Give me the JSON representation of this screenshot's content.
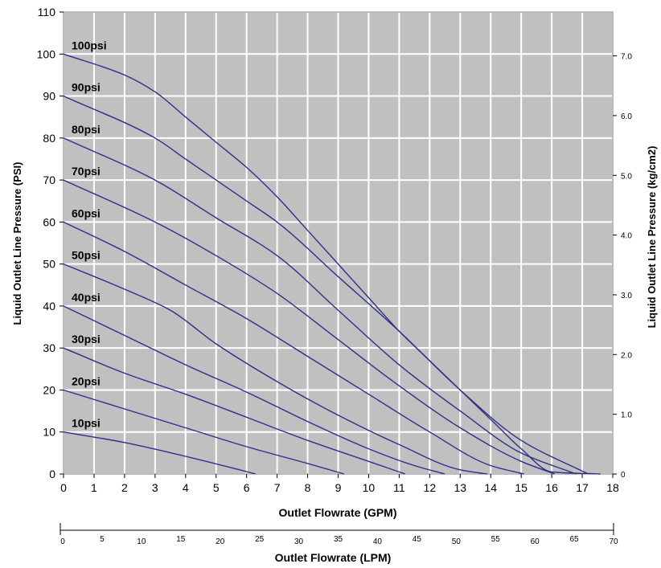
{
  "chart_data": {
    "type": "line",
    "xlabel": "Outlet Flowrate (GPM)",
    "ylabel": "Liquid Outlet Line Pressure (PSI)",
    "ylabel_right": "Liquid Outlet Line Pressure (kg/cm2)",
    "xlabel_secondary": "Outlet Flowrate (LPM)",
    "xlim": [
      0,
      18
    ],
    "ylim": [
      0,
      110
    ],
    "grid": true,
    "background": "#c0c0c0",
    "line_color": "#2e2e8c",
    "x_ticks": [
      "0",
      "1",
      "2",
      "3",
      "4",
      "5",
      "6",
      "7",
      "8",
      "9",
      "10",
      "11",
      "12",
      "13",
      "14",
      "15",
      "16",
      "17",
      "18"
    ],
    "y_ticks": [
      "0",
      "10",
      "20",
      "30",
      "40",
      "50",
      "60",
      "70",
      "80",
      "90",
      "100",
      "110"
    ],
    "right_ticks": [
      {
        "label": "0",
        "value": 0
      },
      {
        "label": "1.0",
        "value": 1.0
      },
      {
        "label": "2.0",
        "value": 2.0
      },
      {
        "label": "3.0",
        "value": 3.0
      },
      {
        "label": "4.0",
        "value": 4.0
      },
      {
        "label": "5.0",
        "value": 5.0
      },
      {
        "label": "6.0",
        "value": 6.0
      },
      {
        "label": "7.0",
        "value": 7.0
      }
    ],
    "lpm_ticks": [
      "0",
      "5",
      "10",
      "15",
      "20",
      "25",
      "30",
      "35",
      "40",
      "45",
      "50",
      "55",
      "60",
      "65",
      "70"
    ],
    "series": [
      {
        "name": "10psi",
        "points": [
          [
            0,
            10
          ],
          [
            2,
            7.5
          ],
          [
            4,
            4.2
          ],
          [
            5.5,
            1.5
          ],
          [
            6.3,
            0
          ]
        ]
      },
      {
        "name": "20psi",
        "points": [
          [
            0,
            20
          ],
          [
            2,
            15.5
          ],
          [
            4,
            11
          ],
          [
            6,
            6.5
          ],
          [
            8,
            2.5
          ],
          [
            9.2,
            0
          ]
        ]
      },
      {
        "name": "30psi",
        "points": [
          [
            0,
            30
          ],
          [
            2,
            24
          ],
          [
            4,
            19
          ],
          [
            6,
            13.5
          ],
          [
            8,
            8
          ],
          [
            10,
            3
          ],
          [
            11.2,
            0
          ]
        ]
      },
      {
        "name": "40psi",
        "points": [
          [
            0,
            40
          ],
          [
            2,
            33
          ],
          [
            4,
            26
          ],
          [
            6,
            19.5
          ],
          [
            8,
            12.5
          ],
          [
            10,
            6
          ],
          [
            11.5,
            2
          ],
          [
            12.5,
            0
          ]
        ]
      },
      {
        "name": "50psi",
        "points": [
          [
            0,
            50
          ],
          [
            2,
            44
          ],
          [
            3.5,
            39
          ],
          [
            5,
            31
          ],
          [
            7,
            22
          ],
          [
            9,
            14
          ],
          [
            11,
            7
          ],
          [
            13,
            1
          ],
          [
            13.9,
            0
          ]
        ]
      },
      {
        "name": "60psi",
        "points": [
          [
            0,
            60
          ],
          [
            2,
            53
          ],
          [
            4,
            45
          ],
          [
            6,
            37
          ],
          [
            8,
            28
          ],
          [
            10,
            19
          ],
          [
            12,
            10
          ],
          [
            14,
            2
          ],
          [
            15.1,
            0
          ]
        ]
      },
      {
        "name": "70psi",
        "points": [
          [
            0,
            70
          ],
          [
            3,
            60
          ],
          [
            5,
            52
          ],
          [
            7,
            43
          ],
          [
            9,
            32
          ],
          [
            11,
            21
          ],
          [
            13,
            11
          ],
          [
            15,
            3
          ],
          [
            16.1,
            0
          ]
        ]
      },
      {
        "name": "80psi",
        "points": [
          [
            0,
            80
          ],
          [
            3,
            70
          ],
          [
            5,
            61
          ],
          [
            7,
            52
          ],
          [
            9,
            39
          ],
          [
            11,
            26
          ],
          [
            13,
            15
          ],
          [
            15,
            5
          ],
          [
            16.8,
            0
          ]
        ]
      },
      {
        "name": "90psi",
        "points": [
          [
            0,
            90
          ],
          [
            3,
            80
          ],
          [
            4,
            75
          ],
          [
            6,
            65
          ],
          [
            7,
            60
          ],
          [
            9,
            47
          ],
          [
            11,
            34
          ],
          [
            13,
            20
          ],
          [
            15,
            8
          ],
          [
            17.2,
            0
          ]
        ]
      },
      {
        "name": "100psi",
        "points": [
          [
            0,
            100
          ],
          [
            2,
            95
          ],
          [
            3,
            91
          ],
          [
            4,
            85
          ],
          [
            5,
            79
          ],
          [
            6,
            73
          ],
          [
            7,
            66
          ],
          [
            8,
            58
          ],
          [
            9,
            50
          ],
          [
            10,
            42
          ],
          [
            11,
            34
          ],
          [
            12,
            27
          ],
          [
            13,
            20
          ],
          [
            14,
            13
          ],
          [
            15,
            6
          ],
          [
            16,
            0.5
          ],
          [
            17.6,
            0
          ]
        ]
      }
    ]
  }
}
